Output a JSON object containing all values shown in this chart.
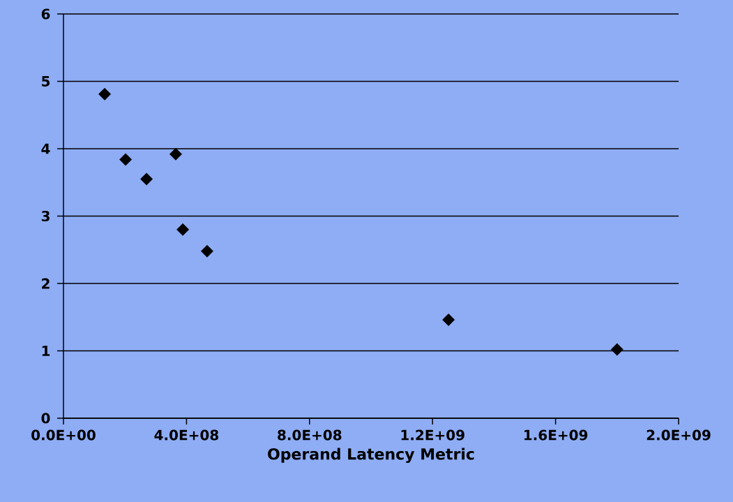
{
  "chart_data": {
    "type": "scatter",
    "xlabel": "Operand Latency Metric",
    "x": [
      134000000,
      202000000,
      270000000,
      365000000,
      388000000,
      467000000,
      1252000000,
      1800000000
    ],
    "series": [
      {
        "color": "#000000",
        "values": [
          4.81,
          3.84,
          3.55,
          3.92,
          2.8,
          2.48,
          1.46,
          1.02
        ]
      }
    ],
    "xlim": [
      0,
      2000000000
    ],
    "xticks": [
      {
        "value": 0,
        "label": "0.0E+00"
      },
      {
        "value": 400000000,
        "label": "4.0E+08"
      },
      {
        "value": 800000000,
        "label": "8.0E+08"
      },
      {
        "value": 1200000000,
        "label": "1.2E+09"
      },
      {
        "value": 1600000000,
        "label": "1.6E+09"
      },
      {
        "value": 2000000000,
        "label": "2.0E+09"
      }
    ],
    "ylim": [
      0,
      6
    ],
    "yticks": [
      0,
      1,
      2,
      3,
      4,
      5,
      6
    ],
    "grid": "y",
    "marker": "diamond"
  }
}
